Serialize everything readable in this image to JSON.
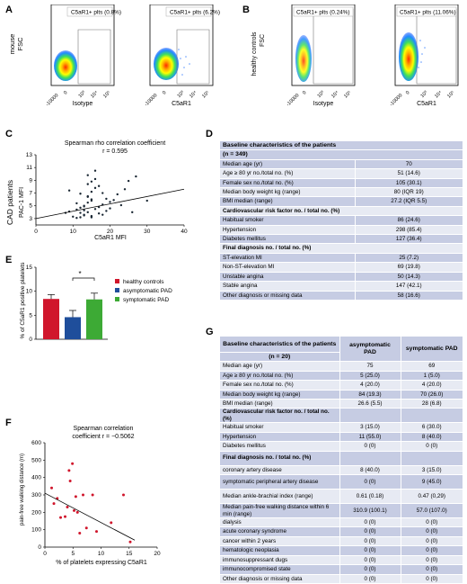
{
  "panels": {
    "A": {
      "letter": "A",
      "ylabel": "mouse\nFSC",
      "plots": [
        {
          "gate": "C5aR1+ plts (0.8%)",
          "xlabel": "Isotype"
        },
        {
          "gate": "C5aR1+ plts (6.2%)",
          "xlabel": "C5aR1"
        }
      ],
      "ticks": [
        "-10000",
        "0",
        "10³",
        "10⁴",
        "10⁵"
      ]
    },
    "B": {
      "letter": "B",
      "ylabel1": "healthy controls",
      "ylabel2": "FSC",
      "plots": [
        {
          "gate": "C5aR1+ plts (0.24%)",
          "xlabel": "Isotype"
        },
        {
          "gate": "C5aR1+ plts (11.06%)",
          "xlabel": "C5aR1"
        }
      ],
      "ticks": [
        "-10000",
        "0",
        "10³",
        "10⁴",
        "10⁵"
      ]
    },
    "C": {
      "letter": "C",
      "title": "Spearman rho correlation coefficient",
      "stat": "r = 0.595",
      "ylabel1": "CAD patients",
      "ylabel2": "PAC-1 MFI",
      "xlabel": "C5aR1 MFI",
      "xticks": [
        "0",
        "10",
        "20",
        "30",
        "40"
      ],
      "yticks": [
        "3",
        "5",
        "7",
        "9",
        "11",
        "13"
      ]
    },
    "D": {
      "letter": "D",
      "header": "Baseline characteristics of the patients",
      "n": "(n = 349)",
      "rows": [
        {
          "label": "Median age (yr)",
          "value": "70"
        },
        {
          "label": "Age ≥ 80 yr no./total no. (%)",
          "value": "51 (14.6)"
        },
        {
          "label": "Female sex no./total no. (%)",
          "value": "105 (30.1)"
        },
        {
          "label": "Median body weight kg (range)",
          "value": "80 (IQR 19)"
        },
        {
          "label": "BMI median (range)",
          "value": "27.2 (IQR 5.5)"
        },
        {
          "label": "Cardiovascular risk factor no. / total no. (%)",
          "value": "",
          "section": true
        },
        {
          "label": "Habitual smoker",
          "value": "86 (24.6)"
        },
        {
          "label": "Hypertension",
          "value": "298 (85.4)"
        },
        {
          "label": "Diabetes mellitus",
          "value": "127 (36.4)"
        },
        {
          "label": "Final diagnosis no. / total no. (%)",
          "value": "",
          "section": true
        },
        {
          "label": "ST-elevation MI",
          "value": "25 (7.2)"
        },
        {
          "label": "Non-ST-elevation MI",
          "value": "69 (19.8)"
        },
        {
          "label": "Unstable angina",
          "value": "50 (14.3)"
        },
        {
          "label": "Stable angina",
          "value": "147 (42.1)"
        },
        {
          "label": "Other diagnosis or missing data",
          "value": "58 (16.6)"
        }
      ]
    },
    "E": {
      "letter": "E",
      "ylabel": "% of C5aR1 positive platelets",
      "yticks": [
        "0",
        "5",
        "10",
        "15"
      ],
      "sig": "*"
    },
    "F": {
      "letter": "F",
      "title1": "Spearman correlation",
      "title2": "coefficient r = −0.5062",
      "ylabel": "pain-free walking distance (m)",
      "xlabel": "% of platelets expressing C5aR1",
      "xticks": [
        "0",
        "5",
        "10",
        "15",
        "20"
      ],
      "yticks": [
        "0",
        "100",
        "200",
        "300",
        "400",
        "500",
        "600"
      ]
    },
    "G": {
      "letter": "G",
      "header": "Baseline characteristics of the patients",
      "n": "(n = 20)",
      "col1": "asymptomatic PAD",
      "col2": "symptomatic PAD",
      "rows": [
        {
          "label": "Median age (yr)",
          "a": "75",
          "s": "69"
        },
        {
          "label": "Age ≥ 80 yr no./total no. (%)",
          "a": "5 (25.0)",
          "s": "1 (5.0)"
        },
        {
          "label": "Female sex no./total no. (%)",
          "a": "4 (20.0)",
          "s": "4 (20.0)"
        },
        {
          "label": "Median body weight kg (range)",
          "a": "84 (19.3)",
          "s": "70 (26.0)"
        },
        {
          "label": "BMI median (range)",
          "a": "26.6 (5.5)",
          "s": "28 (6.8)"
        },
        {
          "label": "Cardiovascular risk factor no. / total no. (%)",
          "a": "",
          "s": "",
          "section": true
        },
        {
          "label": "Habitual smoker",
          "a": "3 (15.0)",
          "s": "6 (30.0)"
        },
        {
          "label": "Hypertension",
          "a": "11 (55.0)",
          "s": "8 (40.0)"
        },
        {
          "label": "Diabetes mellitus",
          "a": "0 (0)",
          "s": "0 (0)"
        },
        {
          "label": "Final diagnosis no. / total no. (%)",
          "a": "",
          "s": "",
          "section": true
        },
        {
          "label": "coronary artery disease",
          "a": "8 (40.0)",
          "s": "3 (15.0)"
        },
        {
          "label": "symptomatic peripheral artery disease",
          "a": "0 (0)",
          "s": "9 (45.0)"
        },
        {
          "label": "Median ankle-brachial index (range)",
          "a": "0.61 (0.18)",
          "s": "0.47 (0,29)"
        },
        {
          "label": "Median pain-free walking distance within 6 min (range)",
          "a": "310.9 (100.1)",
          "s": "57.0 (107.0)"
        },
        {
          "label": "dialysis",
          "a": "0 (0)",
          "s": "0 (0)"
        },
        {
          "label": "acute coronary syndrome",
          "a": "0 (0)",
          "s": "0 (0)"
        },
        {
          "label": "cancer within 2 years",
          "a": "0 (0)",
          "s": "0 (0)"
        },
        {
          "label": "hematologic neoplasia",
          "a": "0 (0)",
          "s": "0 (0)"
        },
        {
          "label": "immunosuppressant dugs",
          "a": "0 (0)",
          "s": "0 (0)"
        },
        {
          "label": "immunocompromised state",
          "a": "0 (0)",
          "s": "0 (0)"
        },
        {
          "label": "Other diagnosis or missing data",
          "a": "0 (0)",
          "s": "0 (0)"
        }
      ]
    }
  },
  "chart_data": [
    {
      "type": "scatter",
      "panel": "C",
      "title": "Spearman rho correlation coefficient",
      "annotation": "r = 0.595",
      "xlabel": "C5aR1 MFI",
      "ylabel": "PAC-1 MFI",
      "xlim": [
        0,
        40
      ],
      "ylim": [
        2,
        13
      ],
      "trendline": {
        "x": [
          0,
          40
        ],
        "y": [
          3.0,
          7.6
        ]
      },
      "x": [
        12,
        13,
        14,
        15,
        16,
        13,
        14,
        15,
        12,
        17,
        18,
        11,
        14,
        15,
        16,
        19,
        20,
        13,
        12,
        17,
        15,
        14,
        16,
        18,
        13,
        22,
        10,
        9,
        11,
        25,
        24,
        20,
        18,
        21,
        16,
        14,
        13,
        12,
        11,
        15,
        17,
        19,
        23,
        27,
        26,
        8,
        9,
        30,
        14,
        15
      ],
      "y": [
        3.2,
        3.6,
        4.0,
        3.4,
        4.5,
        5.0,
        5.5,
        6.0,
        3.9,
        4.8,
        5.2,
        3.1,
        6.5,
        7.2,
        7.8,
        6.1,
        5.6,
        4.3,
        4.7,
        3.8,
        5.8,
        8.4,
        9.2,
        7.0,
        3.5,
        6.8,
        3.3,
        4.1,
        5.4,
        8.9,
        7.6,
        4.6,
        3.6,
        5.9,
        10.5,
        6.4,
        4.9,
        6.9,
        4.4,
        3.2,
        8.1,
        4.2,
        5.1,
        9.6,
        4.0,
        3.9,
        7.4,
        5.8,
        9.8,
        8.8
      ]
    },
    {
      "type": "bar",
      "panel": "E",
      "ylabel": "% of C5aR1 positive platelets",
      "ylim": [
        0,
        15
      ],
      "series": [
        {
          "name": "healthy controls",
          "value": 8.4,
          "error": 0.9,
          "color": "#d0162c"
        },
        {
          "name": "asymptomatic PAD",
          "value": 4.6,
          "error": 1.4,
          "color": "#1f4e9b"
        },
        {
          "name": "symptomatic PAD",
          "value": 8.3,
          "error": 1.3,
          "color": "#3daa35"
        }
      ],
      "significance": {
        "between": [
          "asymptomatic PAD",
          "symptomatic PAD"
        ],
        "label": "*"
      }
    },
    {
      "type": "scatter",
      "panel": "F",
      "title": "Spearman correlation coefficient r = −0.5062",
      "xlabel": "% of platelets expressing C5aR1",
      "ylabel": "pain-free walking distance (m)",
      "xlim": [
        0,
        20
      ],
      "ylim": [
        0,
        600
      ],
      "trendline": {
        "x": [
          0,
          16
        ],
        "y": [
          310,
          40
        ]
      },
      "x": [
        1.2,
        1.6,
        2.2,
        4.3,
        4.9,
        4.5,
        5.5,
        5.2,
        6.8,
        8.5,
        2.8,
        4.0,
        3.6,
        5.8,
        7.4,
        9.2,
        11.8,
        14.0,
        15.2,
        6.2
      ],
      "y": [
        340,
        250,
        280,
        440,
        480,
        380,
        290,
        210,
        300,
        300,
        170,
        230,
        175,
        200,
        110,
        90,
        140,
        300,
        30,
        80
      ]
    }
  ]
}
